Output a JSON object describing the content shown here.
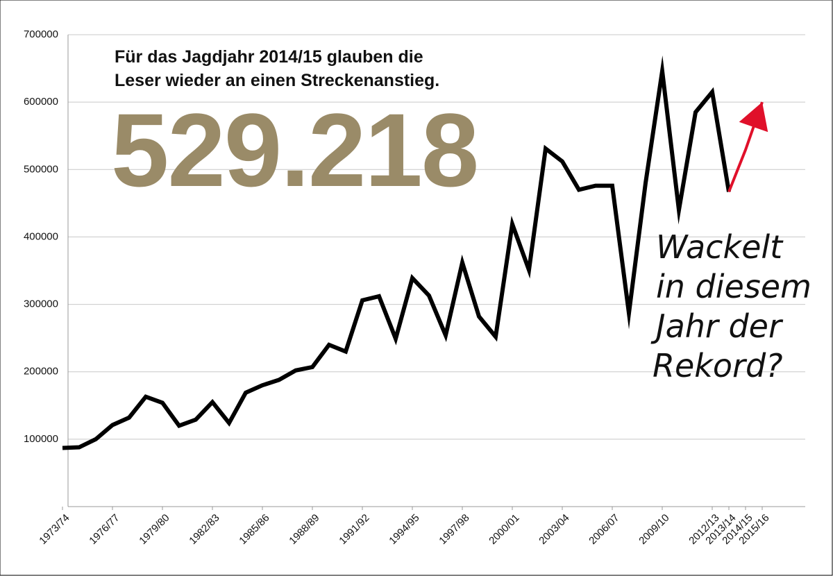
{
  "chart_data": {
    "type": "line",
    "headline": [
      "Für das Jagdjahr 2014/15 glauben die",
      "Leser wieder an einen Streckenanstieg."
    ],
    "big_number": "529.218",
    "annotation": [
      "Wackelt",
      "in diesem",
      "Jahr der",
      "Rekord?"
    ],
    "categories": [
      "1973/74",
      null,
      null,
      "1976/77",
      null,
      null,
      "1979/80",
      null,
      null,
      "1982/83",
      null,
      null,
      "1985/86",
      null,
      null,
      "1988/89",
      null,
      null,
      "1991/92",
      null,
      null,
      "1994/95",
      null,
      null,
      "1997/98",
      null,
      null,
      "2000/01",
      null,
      null,
      "2003/04",
      null,
      null,
      "2006/07",
      null,
      null,
      "2009/10",
      null,
      null,
      "2012/13",
      "2013/14",
      "2014/15",
      "2015/16"
    ],
    "series": [
      {
        "color": "#000000",
        "values": [
          87000,
          88000,
          100000,
          121000,
          132000,
          163000,
          154000,
          120000,
          129000,
          155000,
          124000,
          169000,
          180000,
          188000,
          202000,
          207000,
          240000,
          230000,
          306000,
          312000,
          249000,
          339000,
          313000,
          254000,
          362000,
          282000,
          252000,
          419000,
          351000,
          531000,
          512000,
          470000,
          476000,
          476000,
          287000,
          480000,
          646000,
          440000,
          585000,
          615000,
          467000,
          null,
          null
        ]
      },
      {
        "color": "#e0102a",
        "values": [
          null,
          null,
          null,
          null,
          null,
          null,
          null,
          null,
          null,
          null,
          null,
          null,
          null,
          null,
          null,
          null,
          null,
          null,
          null,
          null,
          null,
          null,
          null,
          null,
          null,
          null,
          null,
          null,
          null,
          null,
          null,
          null,
          null,
          null,
          null,
          null,
          null,
          null,
          null,
          null,
          467000,
          529218,
          600000
        ]
      }
    ],
    "ylim": [
      0,
      700000
    ],
    "yticks": [
      100000,
      200000,
      300000,
      400000,
      500000,
      600000,
      700000
    ],
    "grid": true
  }
}
